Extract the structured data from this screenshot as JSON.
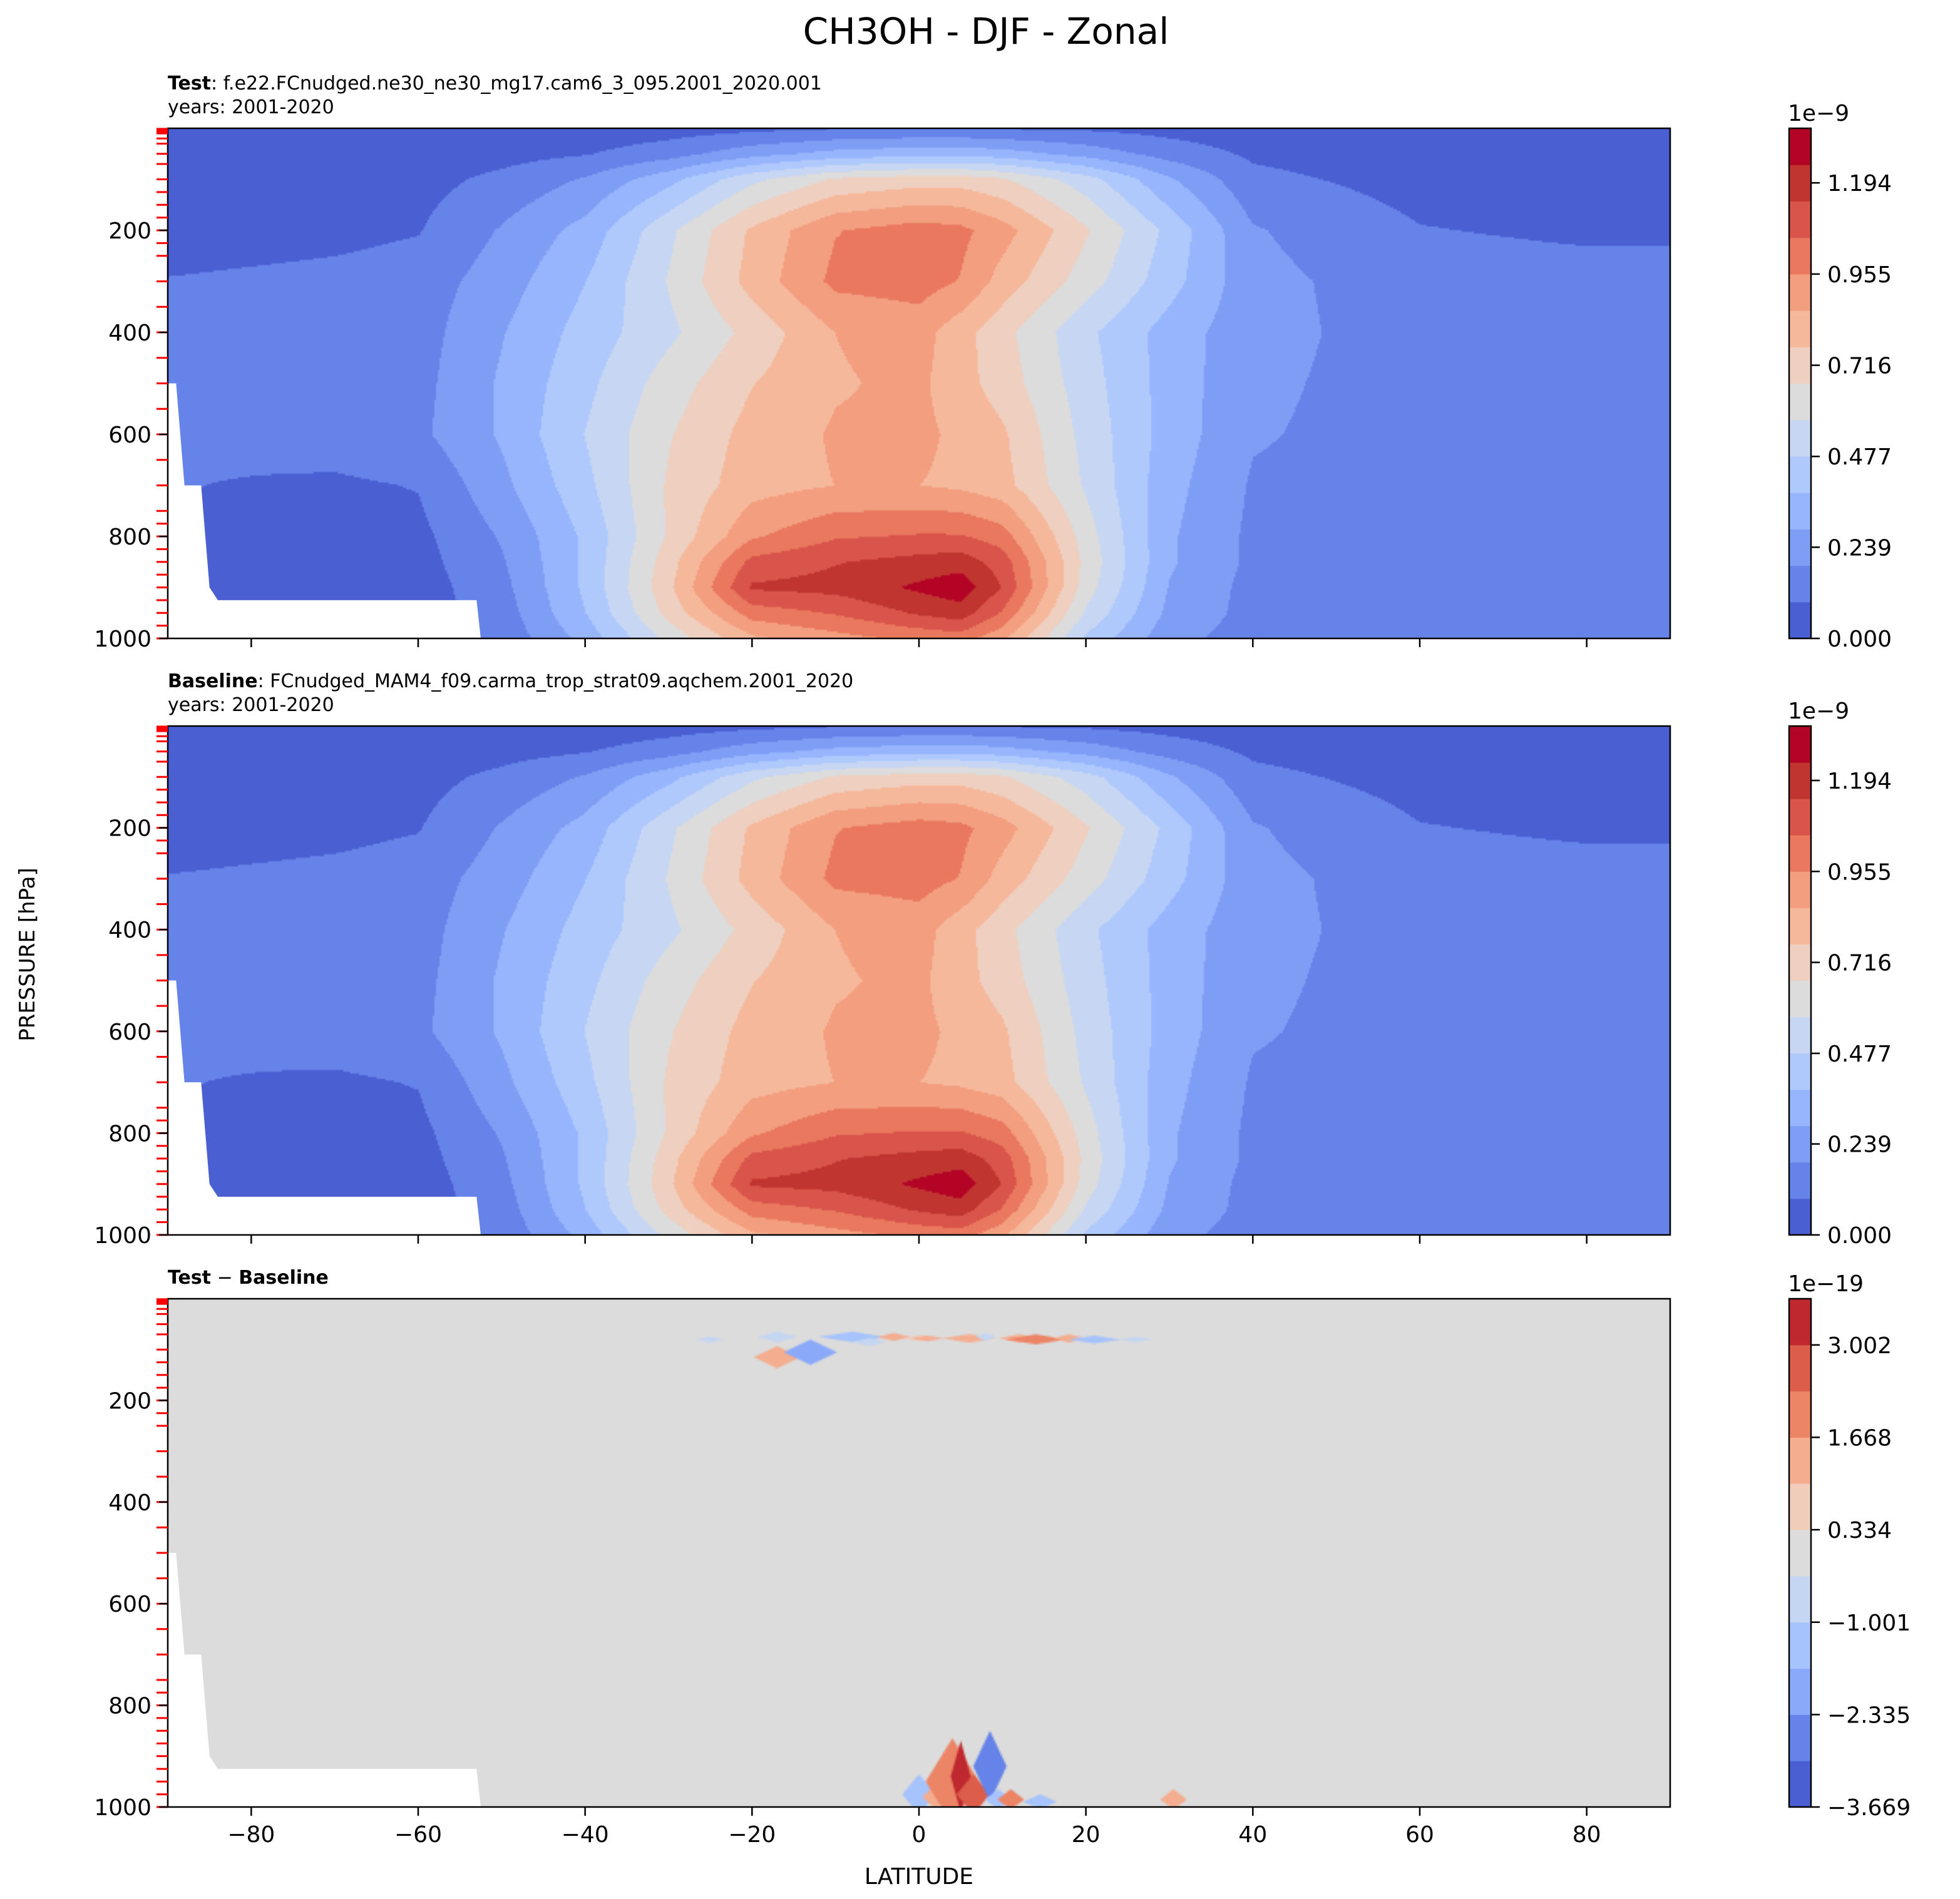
{
  "chart_data": {
    "type": "contour",
    "title": "CH3OH - DJF - Zonal",
    "xlabel": "LATITUDE",
    "ylabel": "PRESSURE [hPa]",
    "xlim": [
      -90,
      90
    ],
    "ylim": [
      1000,
      0
    ],
    "x_ticks": [
      -80,
      -60,
      -40,
      -20,
      0,
      20,
      40,
      60,
      80
    ],
    "y_ticks": [
      200,
      400,
      600,
      800,
      1000
    ],
    "level_ticks_hPa": [
      1,
      2,
      3,
      5,
      7,
      10,
      20,
      30,
      50,
      70,
      100,
      125,
      150,
      175,
      200,
      225,
      250,
      300,
      350,
      400,
      450,
      500,
      550,
      600,
      650,
      700,
      750,
      775,
      800,
      825,
      850,
      875,
      900,
      925,
      950,
      975,
      1000
    ],
    "panels": [
      {
        "id": "test",
        "label_bold": "Test",
        "label_text": ": f.e22.FCnudged.ne30_ne30_mg17.cam6_3_095.2001_2020.001",
        "years": "years: 2001-2020",
        "colorbar": {
          "exponent": "1e−9",
          "tick_labels": [
            "0.000",
            "0.239",
            "0.477",
            "0.716",
            "0.955",
            "1.194"
          ],
          "tick_values": [
            0.0,
            0.239,
            0.477,
            0.716,
            0.955,
            1.194
          ],
          "boundaries": [
            0.0,
            0.0955,
            0.191,
            0.2865,
            0.382,
            0.4775,
            0.573,
            0.6685,
            0.764,
            0.8595,
            0.955,
            1.0505,
            1.146,
            1.2415,
            1.337
          ],
          "colors": [
            "#4a5fd2",
            "#6583e9",
            "#7e9ef6",
            "#97b5fd",
            "#b0c9fd",
            "#c7d7f3",
            "#dcdcdc",
            "#efcfbf",
            "#f6b89b",
            "#f39e7f",
            "#e9785f",
            "#d9544a",
            "#c03530",
            "#b40426"
          ]
        },
        "field": {
          "x": [
            -90,
            -80,
            -70,
            -60,
            -50,
            -40,
            -30,
            -20,
            -10,
            0,
            5,
            10,
            20,
            30,
            40,
            60,
            80,
            90
          ],
          "p": [
            0,
            50,
            100,
            200,
            300,
            400,
            500,
            600,
            700,
            800,
            850,
            900,
            950,
            1000
          ],
          "values_1e-9": [
            [
              0.02,
              0.02,
              0.02,
              0.02,
              0.02,
              0.03,
              0.05,
              0.07,
              0.09,
              0.1,
              0.1,
              0.09,
              0.08,
              0.06,
              0.04,
              0.03,
              0.02,
              0.02
            ],
            [
              0.03,
              0.03,
              0.03,
              0.04,
              0.06,
              0.09,
              0.15,
              0.25,
              0.32,
              0.35,
              0.35,
              0.33,
              0.25,
              0.15,
              0.08,
              0.04,
              0.03,
              0.03
            ],
            [
              0.04,
              0.05,
              0.05,
              0.06,
              0.12,
              0.2,
              0.35,
              0.55,
              0.68,
              0.72,
              0.72,
              0.68,
              0.52,
              0.3,
              0.12,
              0.06,
              0.05,
              0.05
            ],
            [
              0.05,
              0.06,
              0.07,
              0.09,
              0.2,
              0.32,
              0.55,
              0.78,
              0.95,
              1.0,
              0.98,
              0.9,
              0.68,
              0.45,
              0.2,
              0.1,
              0.08,
              0.08
            ],
            [
              0.1,
              0.11,
              0.12,
              0.14,
              0.24,
              0.38,
              0.58,
              0.8,
              0.98,
              1.0,
              0.95,
              0.82,
              0.62,
              0.42,
              0.22,
              0.14,
              0.13,
              0.13
            ],
            [
              0.11,
              0.12,
              0.13,
              0.15,
              0.28,
              0.42,
              0.55,
              0.7,
              0.86,
              0.9,
              0.8,
              0.7,
              0.5,
              0.34,
              0.22,
              0.15,
              0.14,
              0.14
            ],
            [
              0.11,
              0.12,
              0.13,
              0.16,
              0.3,
              0.45,
              0.62,
              0.76,
              0.85,
              0.88,
              0.8,
              0.72,
              0.52,
              0.34,
              0.21,
              0.15,
              0.14,
              0.14
            ],
            [
              0.11,
              0.12,
              0.14,
              0.17,
              0.3,
              0.48,
              0.66,
              0.8,
              0.87,
              0.88,
              0.84,
              0.78,
              0.54,
              0.34,
              0.2,
              0.15,
              0.14,
              0.14
            ],
            [
              0.1,
              0.09,
              0.08,
              0.1,
              0.26,
              0.45,
              0.68,
              0.82,
              0.86,
              0.86,
              0.84,
              0.8,
              0.56,
              0.32,
              0.18,
              0.15,
              0.14,
              0.14
            ],
            [
              0.09,
              0.08,
              0.07,
              0.07,
              0.2,
              0.4,
              0.68,
              0.94,
              1.04,
              1.06,
              1.06,
              1.0,
              0.62,
              0.3,
              0.17,
              0.15,
              0.14,
              0.14
            ],
            [
              0.08,
              0.07,
              0.06,
              0.06,
              0.18,
              0.4,
              0.72,
              1.08,
              1.14,
              1.18,
              1.2,
              1.1,
              0.64,
              0.3,
              0.17,
              0.15,
              0.14,
              0.14
            ],
            [
              0.08,
              0.07,
              0.06,
              0.05,
              0.16,
              0.4,
              0.74,
              1.16,
              1.18,
              1.26,
              1.3,
              1.14,
              0.62,
              0.28,
              0.16,
              0.15,
              0.14,
              0.14
            ],
            [
              0.08,
              0.07,
              0.06,
              0.05,
              0.14,
              0.38,
              0.7,
              1.0,
              1.06,
              1.16,
              1.2,
              1.04,
              0.56,
              0.26,
              0.16,
              0.15,
              0.14,
              0.14
            ],
            [
              0.08,
              0.07,
              0.06,
              0.05,
              0.12,
              0.32,
              0.6,
              0.84,
              0.92,
              0.98,
              1.0,
              0.88,
              0.46,
              0.22,
              0.15,
              0.15,
              0.14,
              0.14
            ]
          ]
        }
      },
      {
        "id": "baseline",
        "label_bold": "Baseline",
        "label_text": ": FCnudged_MAM4_f09.carma_trop_strat09.aqchem.2001_2020",
        "years": "years: 2001-2020",
        "colorbar": {
          "exponent": "1e−9",
          "tick_labels": [
            "0.000",
            "0.239",
            "0.477",
            "0.716",
            "0.955",
            "1.194"
          ],
          "tick_values": [
            0.0,
            0.239,
            0.477,
            0.716,
            0.955,
            1.194
          ],
          "boundaries": [
            0.0,
            0.0955,
            0.191,
            0.2865,
            0.382,
            0.4775,
            0.573,
            0.6685,
            0.764,
            0.8595,
            0.955,
            1.0505,
            1.146,
            1.2415,
            1.337
          ],
          "colors": [
            "#4a5fd2",
            "#6583e9",
            "#7e9ef6",
            "#97b5fd",
            "#b0c9fd",
            "#c7d7f3",
            "#dcdcdc",
            "#efcfbf",
            "#f6b89b",
            "#f39e7f",
            "#e9785f",
            "#d9544a",
            "#c03530",
            "#b40426"
          ]
        },
        "field_same_as": "test"
      },
      {
        "id": "diff",
        "label_bold": "Test",
        "label_sep": " − ",
        "label_bold2": "Baseline",
        "colorbar": {
          "exponent": "1e−19",
          "tick_labels": [
            "−3.669",
            "−2.335",
            "−1.001",
            "0.334",
            "1.668",
            "3.002"
          ],
          "tick_values": [
            -3.669,
            -2.335,
            -1.001,
            0.334,
            1.668,
            3.002
          ],
          "boundaries": [
            -3.669,
            -3.002,
            -2.335,
            -1.668,
            -1.001,
            -0.334,
            0.334,
            1.001,
            1.668,
            2.335,
            3.002,
            3.669
          ],
          "colors": [
            "#4a5fd2",
            "#6583e9",
            "#8aaaf9",
            "#a7c3fd",
            "#c5d6f2",
            "#dcdcdc",
            "#f0cdbb",
            "#f5ad8f",
            "#ec8566",
            "#dc5d4a",
            "#c0282f"
          ]
        },
        "background_value": 0,
        "features": [
          {
            "x": -25,
            "p": 80,
            "rx": 0.4,
            "rp": 6,
            "bin": 4
          },
          {
            "x": -17,
            "p": 75,
            "rx": 0.6,
            "rp": 10,
            "bin": 4
          },
          {
            "x": -17,
            "p": 115,
            "rx": 0.7,
            "rp": 22,
            "bin": 7
          },
          {
            "x": -13,
            "p": 105,
            "rx": 0.8,
            "rp": 25,
            "bin": 2
          },
          {
            "x": -8,
            "p": 75,
            "rx": 1.0,
            "rp": 10,
            "bin": 3
          },
          {
            "x": -6,
            "p": 85,
            "rx": 0.5,
            "rp": 8,
            "bin": 4
          },
          {
            "x": -3,
            "p": 75,
            "rx": 0.5,
            "rp": 8,
            "bin": 7
          },
          {
            "x": 0,
            "p": 78,
            "rx": 0.5,
            "rp": 6,
            "bin": 6
          },
          {
            "x": 1,
            "p": 78,
            "rx": 0.5,
            "rp": 6,
            "bin": 7
          },
          {
            "x": 6,
            "p": 78,
            "rx": 0.8,
            "rp": 8,
            "bin": 7
          },
          {
            "x": 8,
            "p": 75,
            "rx": 0.3,
            "rp": 8,
            "bin": 4
          },
          {
            "x": 12,
            "p": 78,
            "rx": 0.6,
            "rp": 8,
            "bin": 7
          },
          {
            "x": 14,
            "p": 80,
            "rx": 0.9,
            "rp": 10,
            "bin": 8
          },
          {
            "x": 18,
            "p": 78,
            "rx": 0.5,
            "rp": 8,
            "bin": 7
          },
          {
            "x": 21,
            "p": 80,
            "rx": 0.8,
            "rp": 8,
            "bin": 3
          },
          {
            "x": 26,
            "p": 80,
            "rx": 0.5,
            "rp": 5,
            "bin": 4
          },
          {
            "x": 0,
            "p": 975,
            "rx": 0.5,
            "rp": 40,
            "bin": 3
          },
          {
            "x": 2,
            "p": 980,
            "rx": 0.4,
            "rp": 25,
            "bin": 7
          },
          {
            "x": 4,
            "p": 950,
            "rx": 0.8,
            "rp": 85,
            "bin": 8
          },
          {
            "x": 5,
            "p": 940,
            "rx": 0.3,
            "rp": 70,
            "bin": 10
          },
          {
            "x": 6.5,
            "p": 975,
            "rx": 0.5,
            "rp": 40,
            "bin": 9
          },
          {
            "x": 8.5,
            "p": 920,
            "rx": 0.5,
            "rp": 70,
            "bin": 1
          },
          {
            "x": 9.5,
            "p": 985,
            "rx": 0.4,
            "rp": 20,
            "bin": 3
          },
          {
            "x": 11,
            "p": 985,
            "rx": 0.4,
            "rp": 20,
            "bin": 8
          },
          {
            "x": 14.5,
            "p": 990,
            "rx": 0.5,
            "rp": 15,
            "bin": 3
          },
          {
            "x": 30.5,
            "p": 985,
            "rx": 0.4,
            "rp": 20,
            "bin": 7
          }
        ]
      }
    ],
    "terrain_mask": [
      [
        -90,
        500
      ],
      [
        -89,
        500
      ],
      [
        -88,
        700
      ],
      [
        -86,
        700
      ],
      [
        -85,
        900
      ],
      [
        -84,
        925
      ],
      [
        -53,
        925
      ],
      [
        -52.5,
        1000
      ],
      [
        -90,
        1000
      ]
    ]
  }
}
